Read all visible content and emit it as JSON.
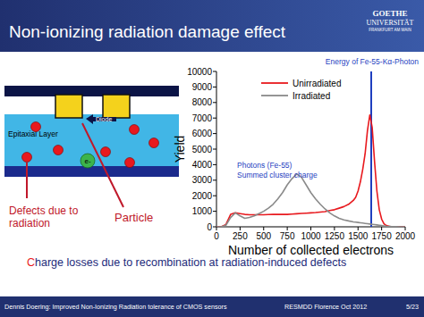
{
  "chart_data": {
    "type": "line",
    "x_label": "Number of collected electrons",
    "y_label": "Yield",
    "x": [
      0,
      50,
      100,
      150,
      200,
      250,
      300,
      350,
      400,
      450,
      500,
      550,
      600,
      650,
      700,
      750,
      800,
      850,
      900,
      950,
      1000,
      1050,
      1100,
      1150,
      1200,
      1250,
      1300,
      1350,
      1400,
      1450,
      1475,
      1500,
      1525,
      1550,
      1575,
      1600,
      1625,
      1650,
      1675,
      1700,
      1725,
      1750,
      1775,
      1800,
      1850,
      1900,
      1950,
      2000
    ],
    "series": [
      {
        "name": "Unirradiated",
        "color": "#e8191e",
        "values": [
          0,
          0,
          150,
          800,
          900,
          850,
          800,
          780,
          780,
          780,
          780,
          790,
          800,
          800,
          800,
          800,
          820,
          840,
          860,
          880,
          900,
          920,
          950,
          980,
          1050,
          1100,
          1200,
          1300,
          1450,
          1700,
          1900,
          2300,
          2900,
          3700,
          4700,
          6200,
          7200,
          6400,
          4200,
          2300,
          1100,
          500,
          200,
          80,
          0,
          0,
          0,
          0
        ]
      },
      {
        "name": "Irradiated",
        "color": "#8a8a8a",
        "values": [
          0,
          0,
          100,
          600,
          900,
          700,
          550,
          600,
          700,
          850,
          1000,
          1200,
          1450,
          1800,
          2200,
          2700,
          3100,
          3400,
          3200,
          2700,
          2200,
          1800,
          1450,
          1150,
          900,
          700,
          550,
          450,
          380,
          320,
          300,
          280,
          260,
          240,
          220,
          200,
          180,
          160,
          140,
          120,
          100,
          80,
          60,
          40,
          20,
          10,
          0,
          0
        ]
      }
    ],
    "xlim": [
      0,
      2000
    ],
    "ylim": [
      0,
      10000
    ],
    "xticks": [
      0,
      250,
      500,
      750,
      1000,
      1250,
      1500,
      1750,
      2000
    ],
    "yticks": [
      0,
      1000,
      2000,
      3000,
      4000,
      5000,
      6000,
      7000,
      8000,
      9000,
      10000
    ],
    "legend": "upper left",
    "annotations": [
      {
        "text": "Energy of Fe-55-Kα-Photon",
        "x": 1640,
        "color": "#1f3fbf"
      },
      {
        "text": "Photons (Fe-55)",
        "color": "#1f3fbf"
      },
      {
        "text": "Summed cluster charge",
        "color": "#1f3fbf"
      }
    ]
  },
  "slide": {
    "title": "Non-ionizing radiation damage effect",
    "logo": [
      "GOETHE",
      "UNIVERSITÄT",
      "FRANKFURT AM MAIN"
    ],
    "diagram": {
      "diode": "Diode",
      "layer": "Epitaxial Layer",
      "electron": "e-",
      "defects": [
        "Defects due to",
        "radiation"
      ],
      "particle": "Particle"
    },
    "caption": "Charge losses due to recombination at radiation-induced defects",
    "footer": {
      "left": "Dennis Doering:  Improved Non-Ionizing Radiation tolerance of CMOS sensors",
      "center": "RESMDD Florence Oct 2012",
      "page": "5/23"
    }
  }
}
